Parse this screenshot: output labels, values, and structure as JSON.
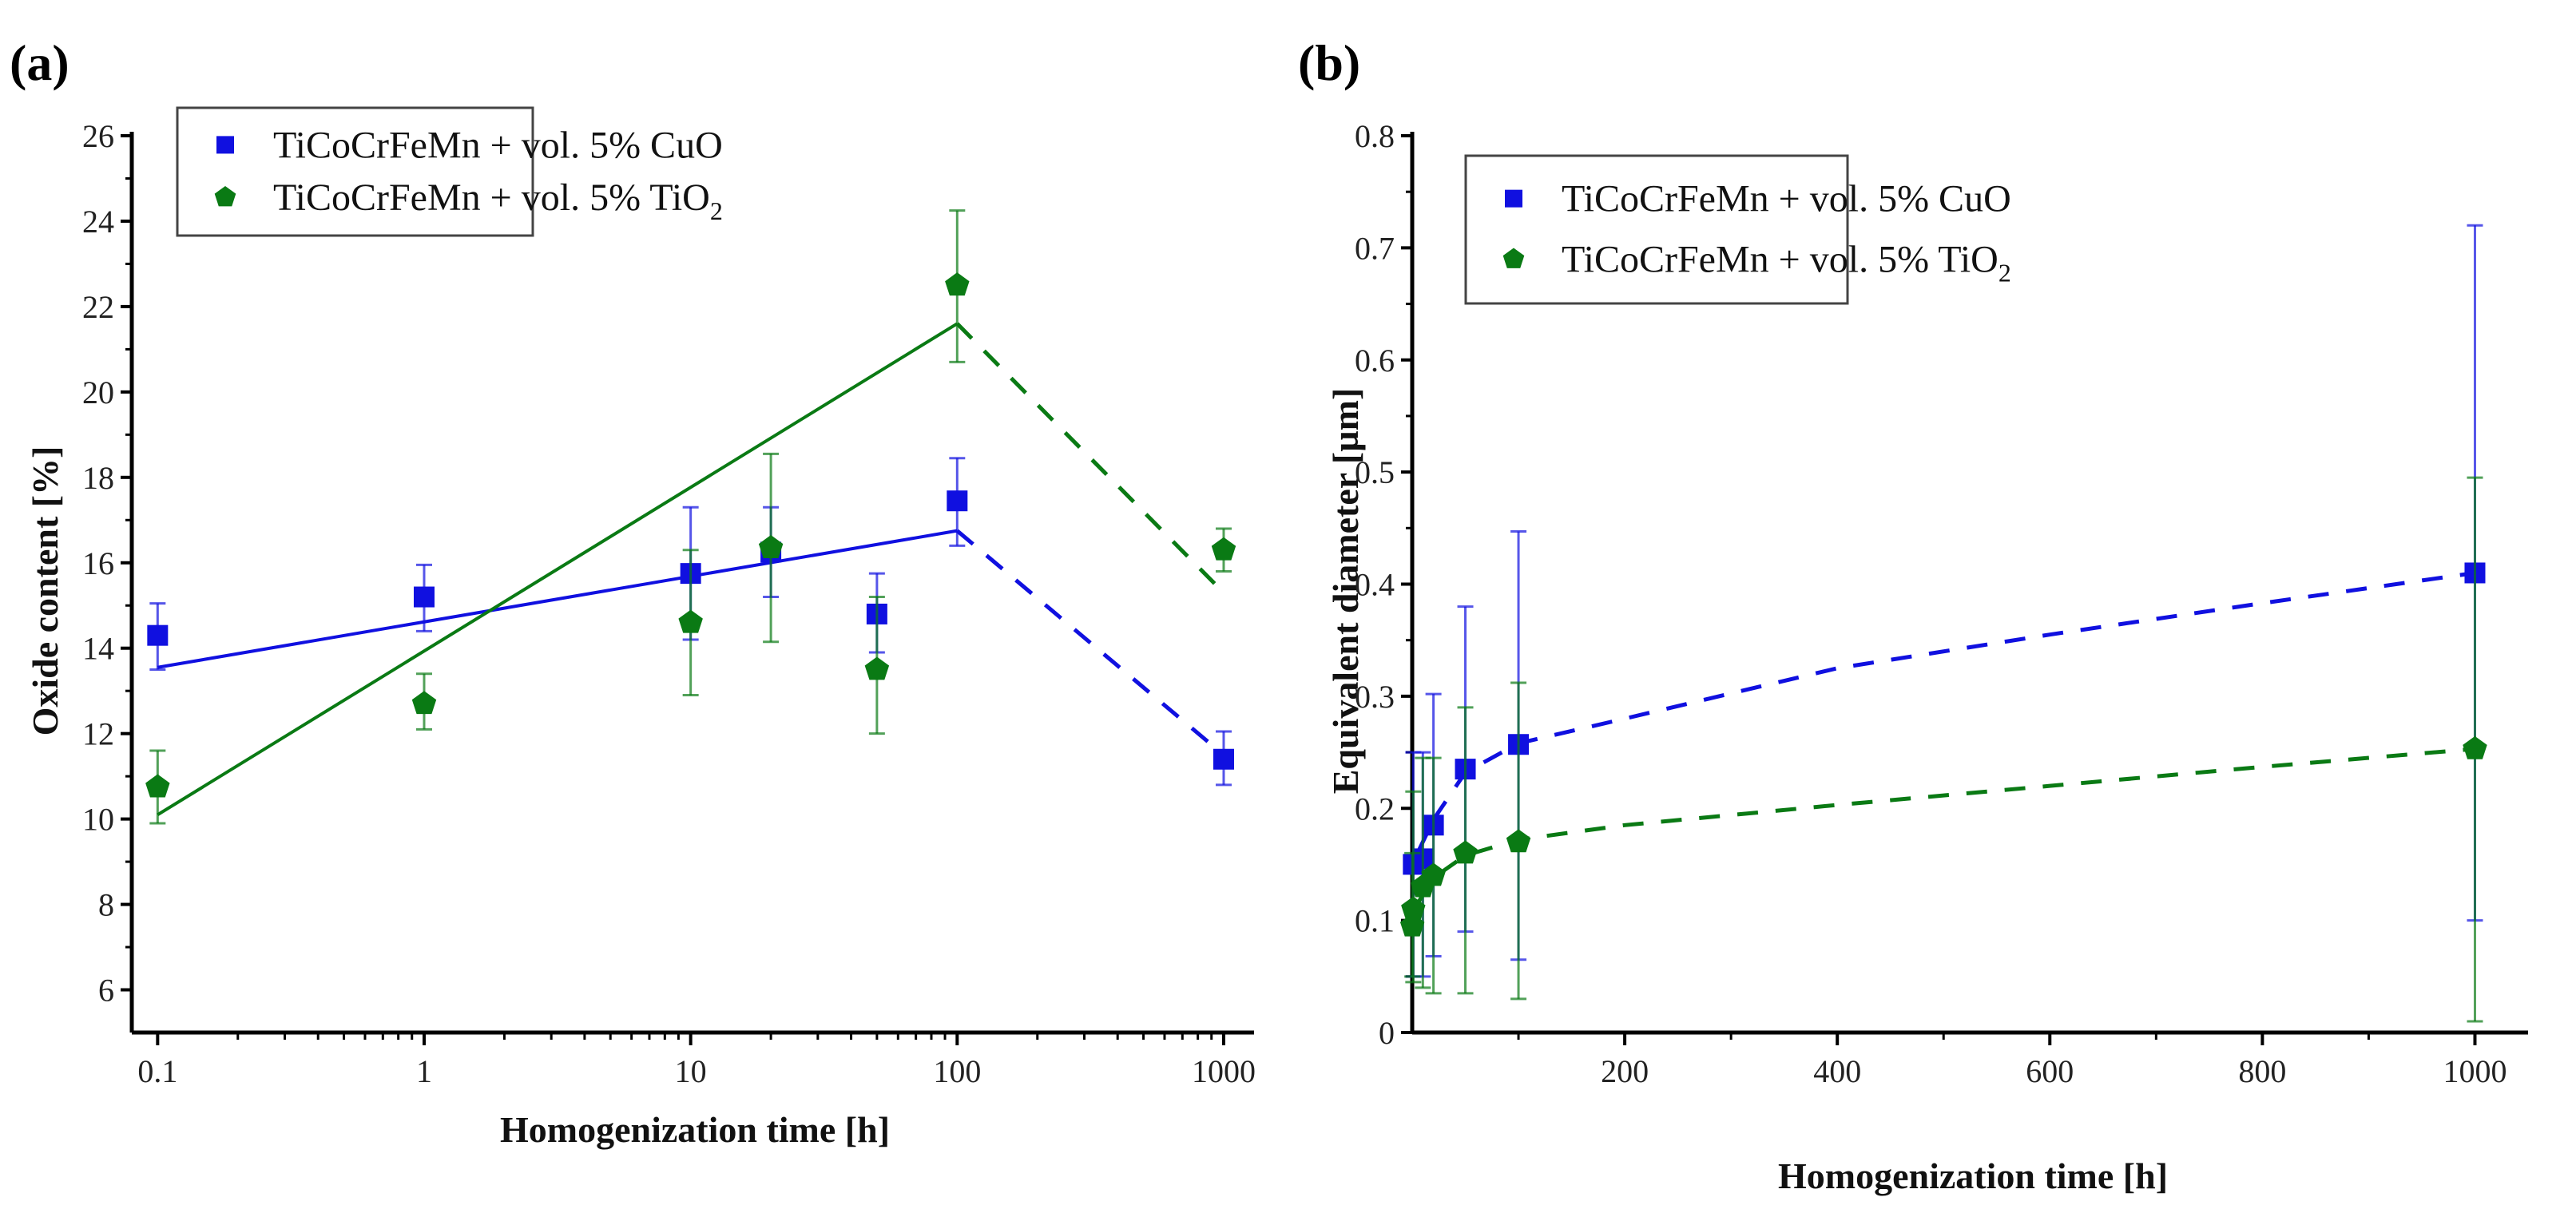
{
  "chart_data": [
    {
      "panel_label": "(a)",
      "type": "scatter",
      "xscale": "log",
      "xlabel": "Homogenization time [h]",
      "ylabel": "Oxide content [%]",
      "xlim": [
        0.08,
        1300
      ],
      "ylim": [
        5,
        26
      ],
      "xticks": [
        0.1,
        1,
        10,
        100,
        1000
      ],
      "xtick_labels": [
        "0.1",
        "1",
        "10",
        "100",
        "1000"
      ],
      "yticks": [
        6,
        8,
        10,
        12,
        14,
        16,
        18,
        20,
        22,
        24,
        26
      ],
      "ytick_labels": [
        "6",
        "8",
        "10",
        "12",
        "14",
        "16",
        "18",
        "20",
        "22",
        "24",
        "26"
      ],
      "legend_position": "top-left",
      "series": [
        {
          "name": "TiCoCrFeMn + vol. 5% CuO",
          "name_main": "TiCoCrFeMn + vol. 5% CuO",
          "name_sub": "",
          "color": "#1010e0",
          "marker": "square",
          "x": [
            0.1,
            1,
            10,
            20,
            50,
            100,
            1000
          ],
          "y": [
            14.3,
            15.2,
            15.75,
            16.25,
            14.8,
            17.45,
            11.4
          ],
          "err_low": [
            13.5,
            14.4,
            14.2,
            15.2,
            13.9,
            16.4,
            10.8
          ],
          "err_high": [
            15.05,
            15.95,
            17.3,
            17.3,
            15.75,
            18.45,
            12.05
          ],
          "fit_solid": {
            "x": [
              0.1,
              100
            ],
            "y": [
              13.55,
              16.75
            ]
          },
          "fit_dashed": {
            "x": [
              100,
              1000
            ],
            "y": [
              16.75,
              11.5
            ]
          }
        },
        {
          "name": "TiCoCrFeMn + vol. 5% TiO2",
          "name_main": "TiCoCrFeMn + vol. 5% TiO",
          "name_sub": "2",
          "color": "#0a7a14",
          "marker": "pentagon",
          "x": [
            0.1,
            1,
            10,
            20,
            50,
            100,
            1000
          ],
          "y": [
            10.75,
            12.7,
            14.6,
            16.35,
            13.5,
            22.5,
            16.3
          ],
          "err_low": [
            9.9,
            12.1,
            12.9,
            14.15,
            12.0,
            20.7,
            15.8
          ],
          "err_high": [
            11.6,
            13.4,
            16.3,
            18.55,
            15.2,
            24.25,
            16.8
          ],
          "fit_solid": {
            "x": [
              0.1,
              100
            ],
            "y": [
              10.1,
              21.6
            ]
          },
          "fit_dashed": {
            "x": [
              100,
              1000
            ],
            "y": [
              21.6,
              15.3
            ]
          }
        }
      ]
    },
    {
      "panel_label": "(b)",
      "type": "scatter",
      "xscale": "linear",
      "xlabel": "Homogenization time [h]",
      "ylabel": "Equivalent diameter [µm]",
      "xlim": [
        0,
        1050
      ],
      "ylim": [
        0,
        0.8
      ],
      "xticks": [
        200,
        400,
        600,
        800,
        1000
      ],
      "xtick_labels": [
        "200",
        "400",
        "600",
        "800",
        "1000"
      ],
      "yticks": [
        0,
        0.1,
        0.2,
        0.3,
        0.4,
        0.5,
        0.6,
        0.7,
        0.8
      ],
      "ytick_labels": [
        "0",
        "0.1",
        "0.2",
        "0.3",
        "0.4",
        "0.5",
        "0.6",
        "0.7",
        "0.8"
      ],
      "legend_position": "top-left",
      "series": [
        {
          "name": "TiCoCrFeMn + vol. 5% CuO",
          "name_main": "TiCoCrFeMn + vol. 5% CuO",
          "name_sub": "",
          "color": "#1010e0",
          "marker": "square",
          "x": [
            1,
            10,
            20,
            50,
            100,
            1000
          ],
          "y": [
            0.15,
            0.155,
            0.185,
            0.235,
            0.257,
            0.41
          ],
          "err_low": [
            0.05,
            0.05,
            0.068,
            0.09,
            0.065,
            0.1
          ],
          "err_high": [
            0.25,
            0.25,
            0.302,
            0.38,
            0.447,
            0.72
          ],
          "fit_dashed": {
            "x": [
              5,
              20,
              50,
              100,
              200,
              400,
              600,
              800,
              1000
            ],
            "y": [
              0.16,
              0.19,
              0.232,
              0.258,
              0.28,
              0.325,
              0.355,
              0.383,
              0.41
            ]
          }
        },
        {
          "name": "TiCoCrFeMn + vol. 5% TiO2",
          "name_main": "TiCoCrFeMn + vol. 5% TiO",
          "name_sub": "2",
          "color": "#0a7a14",
          "marker": "pentagon",
          "x": [
            0.1,
            1,
            10,
            20,
            50,
            100,
            1000
          ],
          "y": [
            0.095,
            0.11,
            0.13,
            0.14,
            0.16,
            0.17,
            0.253
          ],
          "err_low": [
            0.05,
            0.045,
            0.04,
            0.035,
            0.035,
            0.03,
            0.01
          ],
          "err_high": [
            0.16,
            0.215,
            0.245,
            0.245,
            0.29,
            0.312,
            0.495
          ],
          "fit_dashed": {
            "x": [
              5,
              20,
              50,
              100,
              200,
              400,
              600,
              800,
              1000
            ],
            "y": [
              0.115,
              0.138,
              0.158,
              0.172,
              0.185,
              0.203,
              0.22,
              0.237,
              0.253
            ]
          }
        }
      ]
    }
  ]
}
